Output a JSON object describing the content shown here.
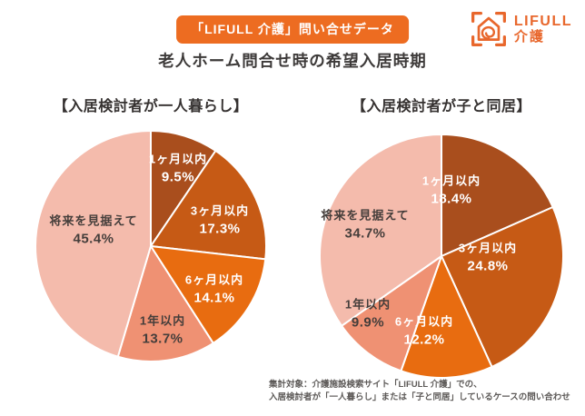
{
  "header": {
    "badge": "「LIFULL 介護」問い合せデータ",
    "title": "老人ホーム問合せ時の希望入居時期"
  },
  "logo": {
    "brand": "LIFULL",
    "sub": "介護",
    "color": "#e8672c"
  },
  "colors": {
    "accent_orange": "#ed6c21",
    "title_text": "#3d3a39",
    "note_text": "#5c5957",
    "slice_divider": "#ffffff"
  },
  "chart_data": [
    {
      "type": "pie",
      "title": "【入居検討者が一人暮らし】",
      "unit": "%",
      "size": 258,
      "start_angle_deg": 0,
      "direction": "clockwise",
      "legend_position": "inside",
      "slices": [
        {
          "label": "1ヶ月以内",
          "value": 9.5,
          "color": "#a94e1d",
          "text_color": "#ffffff",
          "label_pos": [
            159,
            42
          ]
        },
        {
          "label": "3ヶ月以内",
          "value": 17.3,
          "color": "#c65a15",
          "text_color": "#ffffff",
          "label_pos": [
            205,
            99
          ]
        },
        {
          "label": "6ヶ月以内",
          "value": 14.1,
          "color": "#e86c10",
          "text_color": "#ffffff",
          "label_pos": [
            199,
            175
          ]
        },
        {
          "label": "1年以内",
          "value": 13.7,
          "color": "#ef9173",
          "text_color": "#453e3b",
          "label_pos": [
            142,
            220
          ]
        },
        {
          "label": "将来を見据えて",
          "value": 45.4,
          "color": "#f4bbac",
          "text_color": "#453e3b",
          "label_pos": [
            66,
            110
          ]
        }
      ]
    },
    {
      "type": "pie",
      "title": "【入居検討者が子と同居】",
      "unit": "%",
      "size": 272,
      "start_angle_deg": 0,
      "direction": "clockwise",
      "legend_position": "inside",
      "slices": [
        {
          "label": "1ヶ月以内",
          "value": 18.4,
          "color": "#a94e1d",
          "text_color": "#ffffff",
          "label_pos": [
            147,
            62
          ]
        },
        {
          "label": "3ヶ月以内",
          "value": 24.8,
          "color": "#c65a15",
          "text_color": "#ffffff",
          "label_pos": [
            187,
            136
          ]
        },
        {
          "label": "6ヶ月以内",
          "value": 12.2,
          "color": "#e86c10",
          "text_color": "#ffffff",
          "label_pos": [
            117,
            217
          ]
        },
        {
          "label": "1年以内",
          "value": 9.9,
          "color": "#ef9173",
          "text_color": "#453e3b",
          "label_pos": [
            55,
            198
          ]
        },
        {
          "label": "将来を見据えて",
          "value": 34.7,
          "color": "#f4bbac",
          "text_color": "#453e3b",
          "label_pos": [
            52,
            100
          ]
        }
      ]
    }
  ],
  "footer": {
    "line1": "集計対象：介護施設検索サイト「LIFULL 介護」での、",
    "line2": "入居検討者が「一人暮らし」または「子と同居」しているケースの問い合わせ"
  }
}
